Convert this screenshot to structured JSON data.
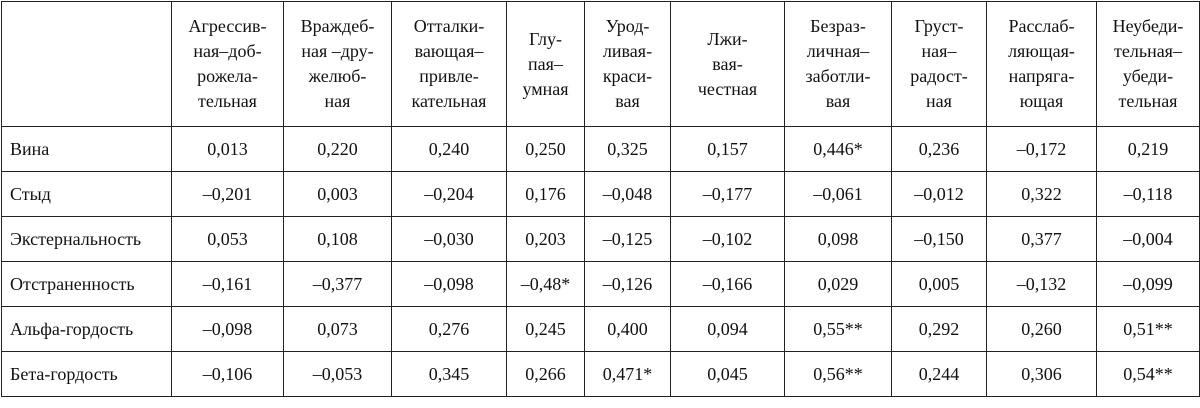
{
  "table": {
    "header": [
      [
        "Агрессив-",
        "ная–доб-",
        "рожела-",
        "тельная"
      ],
      [
        "Враждеб-",
        "ная –дру-",
        "желюб-",
        "ная"
      ],
      [
        "Отталки-",
        "вающая–",
        "привле-",
        "кательная"
      ],
      [
        "Глу-",
        "пая–",
        "умная"
      ],
      [
        "Урод-",
        "ливая-",
        "краси-",
        "вая"
      ],
      [
        "Лжи-",
        "вая-",
        "честная"
      ],
      [
        "Безраз-",
        "личная–",
        "заботли-",
        "вая"
      ],
      [
        "Груст-",
        "ная–",
        "радост-",
        "ная"
      ],
      [
        "Расслаб-",
        "ляющая-",
        "напряга-",
        "ющая"
      ],
      [
        "Неубеди-",
        "тельная–",
        "убеди-",
        "тельная"
      ]
    ],
    "rows": [
      {
        "label": "Вина",
        "values": [
          "0,013",
          "0,220",
          "0,240",
          "0,250",
          "0,325",
          "0,157",
          "0,446*",
          "0,236",
          "–0,172",
          "0,219"
        ]
      },
      {
        "label": "Стыд",
        "values": [
          "–0,201",
          "0,003",
          "–0,204",
          "0,176",
          "–0,048",
          "–0,177",
          "–0,061",
          "–0,012",
          "0,322",
          "–0,118"
        ]
      },
      {
        "label": "Экстернальность",
        "values": [
          "0,053",
          "0,108",
          "–0,030",
          "0,203",
          "–0,125",
          "–0,102",
          "0,098",
          "–0,150",
          "0,377",
          "–0,004"
        ]
      },
      {
        "label": "Отстраненность",
        "values": [
          "–0,161",
          "–0,377",
          "–0,098",
          "–0,48*",
          "–0,126",
          "–0,166",
          "0,029",
          "0,005",
          "–0,132",
          "–0,099"
        ]
      },
      {
        "label": "Альфа-гордость",
        "values": [
          "–0,098",
          "0,073",
          "0,276",
          "0,245",
          "0,400",
          "0,094",
          "0,55**",
          "0,292",
          "0,260",
          "0,51**"
        ]
      },
      {
        "label": "Бета-гордость",
        "values": [
          "–0,106",
          "–0,053",
          "0,345",
          "0,266",
          "0,471*",
          "0,045",
          "0,56**",
          "0,244",
          "0,306",
          "0,54**"
        ]
      }
    ]
  }
}
